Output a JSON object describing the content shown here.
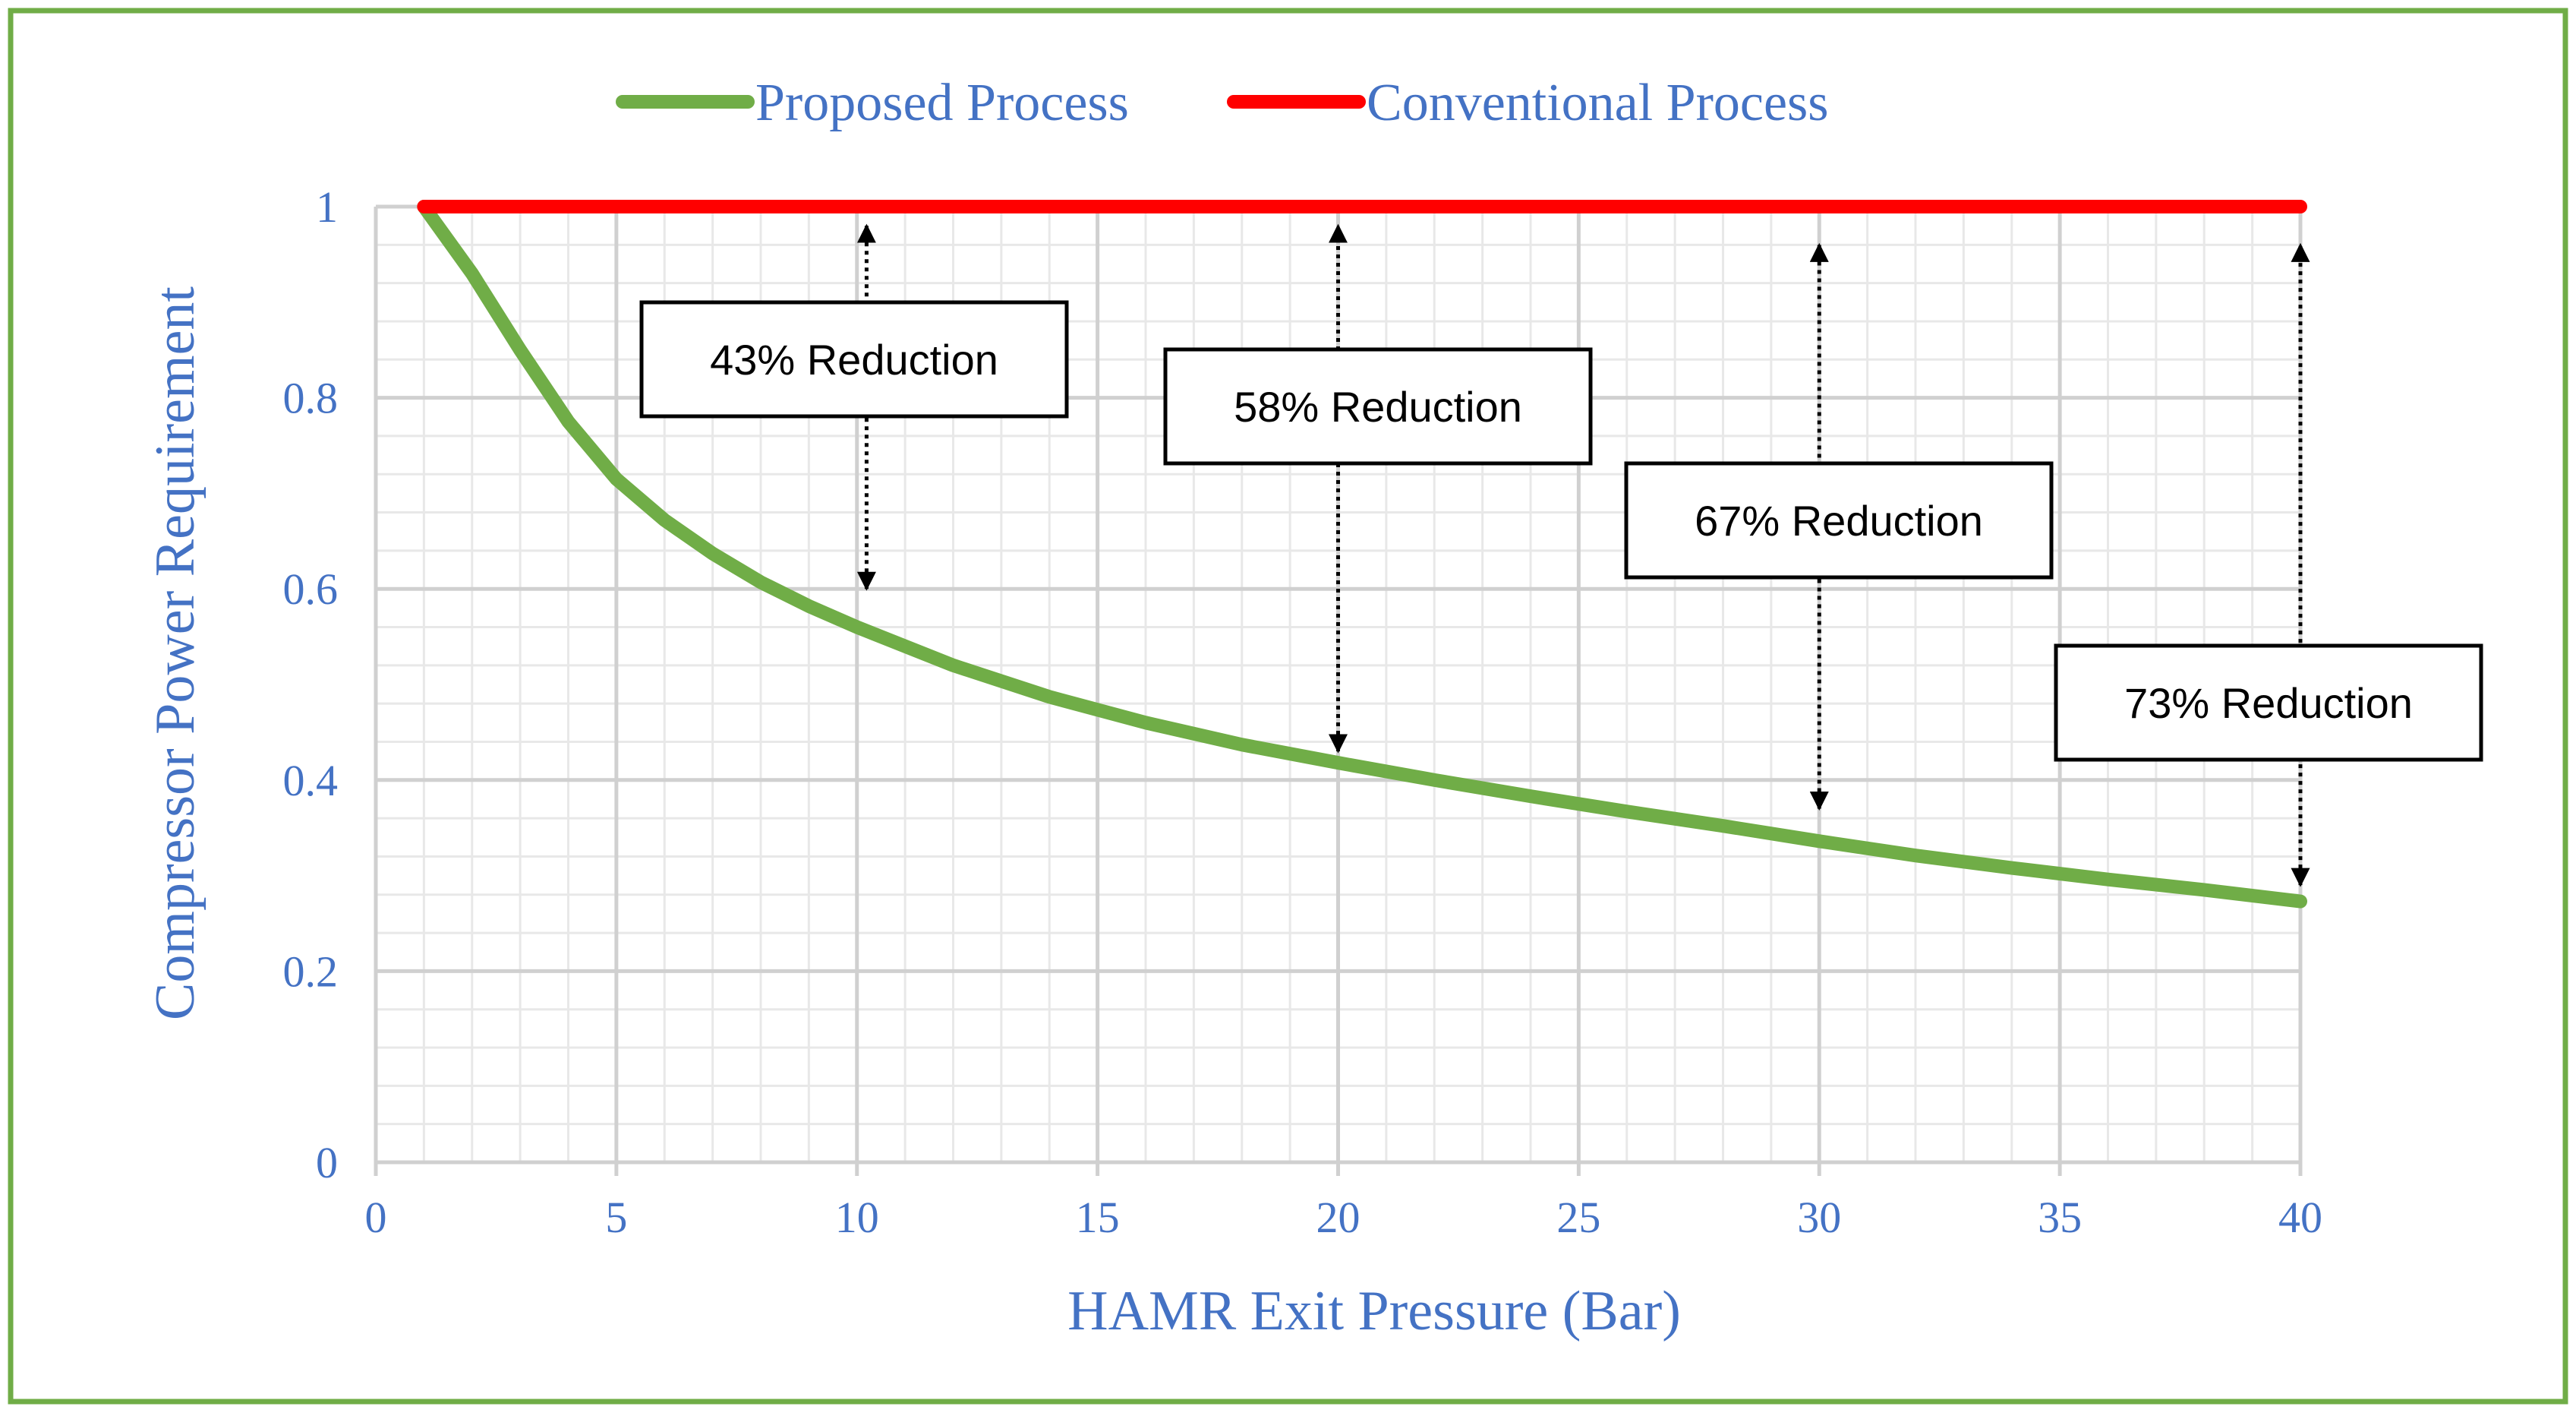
{
  "colors": {
    "frame": "#70AD47",
    "proposed": "#70AD47",
    "conventional": "#FF0000",
    "axis_text": "#4472C4",
    "grid_major": "#D0D0D0",
    "grid_minor": "#E8E8E8",
    "annotation": "#000000"
  },
  "chart_data": {
    "type": "line",
    "title": "",
    "xlabel": "HAMR Exit Pressure (Bar)",
    "ylabel": "Compressor Power Requirement",
    "xlim": [
      0,
      40
    ],
    "ylim": [
      0,
      1
    ],
    "x_ticks": [
      0,
      5,
      10,
      15,
      20,
      25,
      30,
      35,
      40
    ],
    "x_tick_labels": [
      "0",
      "5",
      "10",
      "15",
      "20",
      "25",
      "30",
      "35",
      "40"
    ],
    "y_ticks": [
      0,
      0.2,
      0.4,
      0.6,
      0.8,
      1
    ],
    "y_tick_labels": [
      "0",
      "0.2",
      "0.4",
      "0.6",
      "0.8",
      "1"
    ],
    "grid": true,
    "legend_position": "top",
    "series": [
      {
        "name": "Proposed Process",
        "x": [
          1,
          2,
          3,
          4,
          5,
          6,
          7,
          8,
          9,
          10,
          12,
          14,
          16,
          18,
          20,
          22,
          24,
          26,
          28,
          30,
          32,
          34,
          36,
          38,
          40
        ],
        "values": [
          1.0,
          0.93,
          0.85,
          0.775,
          0.715,
          0.672,
          0.637,
          0.607,
          0.582,
          0.56,
          0.52,
          0.487,
          0.46,
          0.437,
          0.418,
          0.4,
          0.383,
          0.367,
          0.352,
          0.336,
          0.321,
          0.308,
          0.296,
          0.285,
          0.273
        ]
      },
      {
        "name": "Conventional Process",
        "x": [
          1,
          40
        ],
        "values": [
          1.0,
          1.0
        ]
      }
    ],
    "annotations": [
      {
        "label": "43% Reduction",
        "x": 10.2,
        "y_from": 0.6,
        "y_to": 0.98
      },
      {
        "label": "58% Reduction",
        "x": 20,
        "y_from": 0.43,
        "y_to": 0.98
      },
      {
        "label": "67% Reduction",
        "x": 30,
        "y_from": 0.37,
        "y_to": 0.96
      },
      {
        "label": "73% Reduction",
        "x": 40,
        "y_from": 0.29,
        "y_to": 0.96
      }
    ]
  }
}
